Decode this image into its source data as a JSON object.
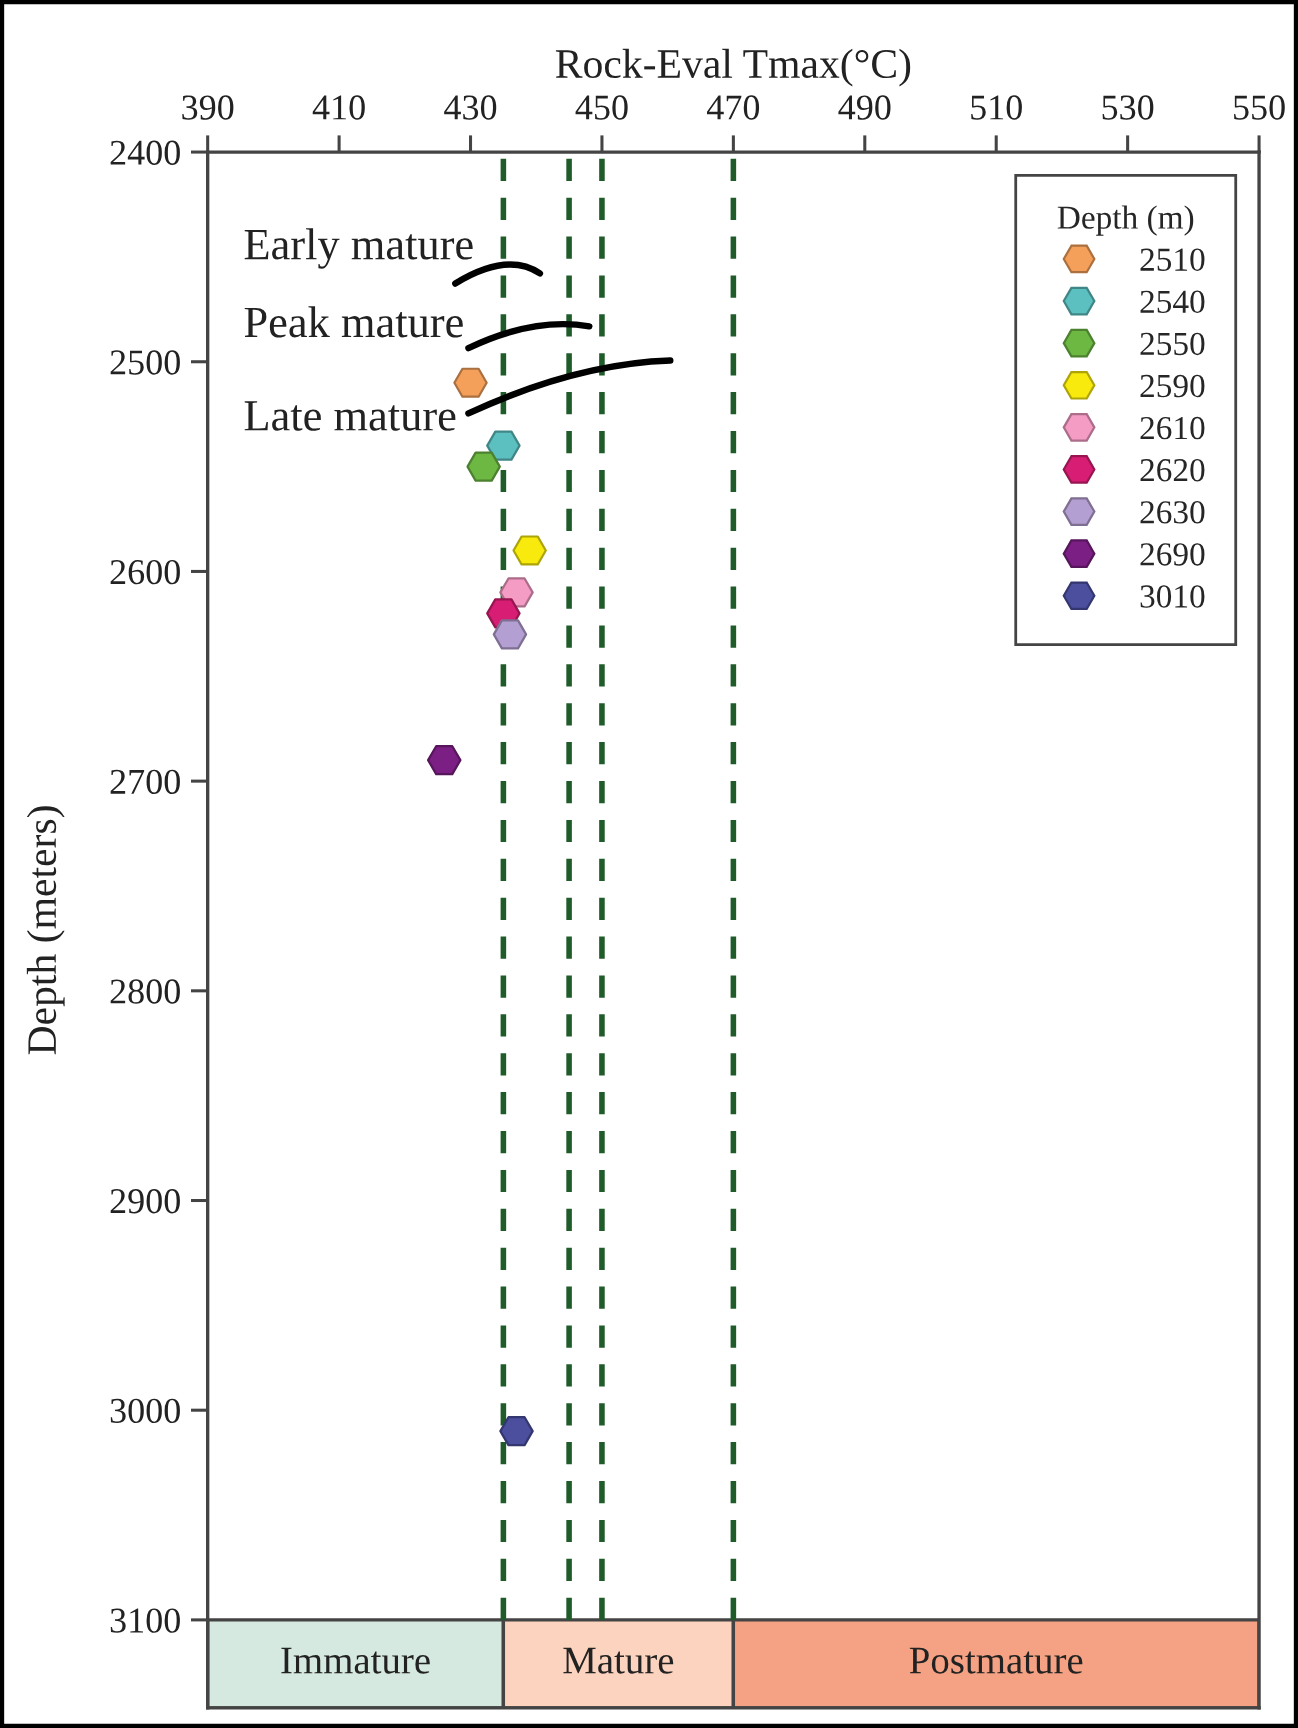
{
  "chart_data": {
    "type": "scatter",
    "xlabel": "Rock-Eval Tmax(°C)",
    "ylabel": "Depth (meters)",
    "legend_title": "Depth (m)",
    "xlim": [
      390,
      550
    ],
    "xticks": [
      390,
      410,
      430,
      450,
      470,
      490,
      510,
      530,
      550
    ],
    "ylim": [
      3142,
      2400
    ],
    "yticks": [
      2400,
      2500,
      2600,
      2700,
      2800,
      2900,
      3000,
      3100
    ],
    "legend": "top right",
    "series": [
      {
        "name": "2510",
        "color": "#f5a05a",
        "x": [
          430
        ],
        "values": [
          2510
        ]
      },
      {
        "name": "2540",
        "color": "#5cc0c0",
        "x": [
          435
        ],
        "values": [
          2540
        ]
      },
      {
        "name": "2550",
        "color": "#6cb843",
        "x": [
          432
        ],
        "values": [
          2550
        ]
      },
      {
        "name": "2590",
        "color": "#f7ea0c",
        "x": [
          439
        ],
        "values": [
          2590
        ]
      },
      {
        "name": "2610",
        "color": "#f59cc4",
        "x": [
          437
        ],
        "values": [
          2610
        ]
      },
      {
        "name": "2620",
        "color": "#d81e74",
        "x": [
          435
        ],
        "values": [
          2620
        ]
      },
      {
        "name": "2630",
        "color": "#b49fd2",
        "x": [
          436
        ],
        "values": [
          2630
        ]
      },
      {
        "name": "2690",
        "color": "#7c1f84",
        "x": [
          426
        ],
        "values": [
          2690
        ]
      },
      {
        "name": "3010",
        "color": "#4b4f9e",
        "x": [
          437
        ],
        "values": [
          3010
        ]
      }
    ],
    "ref_lines": [
      {
        "axis": "x",
        "value": 435,
        "color": "#1f5c2a",
        "line_style": "dashed"
      },
      {
        "axis": "x",
        "value": 445,
        "color": "#1f5c2a",
        "line_style": "dashed"
      },
      {
        "axis": "x",
        "value": 450,
        "color": "#1f5c2a",
        "line_style": "dashed"
      },
      {
        "axis": "x",
        "value": 470,
        "color": "#1f5c2a",
        "line_style": "dashed"
      }
    ],
    "bands": [
      {
        "axis": "x",
        "from": 390,
        "to": 435,
        "label": "Immature",
        "color": "#d6e9e1"
      },
      {
        "axis": "x",
        "from": 435,
        "to": 470,
        "label": "Mature",
        "color": "#fcd3be"
      },
      {
        "axis": "x",
        "from": 470,
        "to": 550,
        "label": "Postmature",
        "color": "#f4a283"
      }
    ],
    "annotations": [
      "Early mature",
      "Peak mature",
      "Late mature"
    ]
  }
}
